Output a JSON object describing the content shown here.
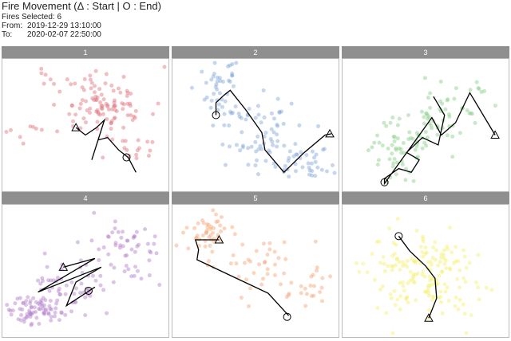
{
  "header": {
    "title": "Fire Movement (Δ : Start | Ο : End)",
    "fires_selected": "Fires Selected: 6",
    "from_label": "From:",
    "from_value": "2019-12-29 13:10:00",
    "to_label": "To:",
    "to_value": "2020-02-07 22:50:00"
  },
  "chart_data": [
    {
      "type": "scatter",
      "title": "1",
      "color": "#e0707a",
      "cloud": [
        {
          "x": 0.6,
          "y": 0.35,
          "sx": 0.14,
          "sy": 0.13,
          "n": 105
        },
        {
          "x": 0.25,
          "y": 0.12,
          "sx": 0.05,
          "sy": 0.05,
          "n": 6
        },
        {
          "x": 0.15,
          "y": 0.55,
          "sx": 0.08,
          "sy": 0.06,
          "n": 8
        },
        {
          "x": 0.85,
          "y": 0.7,
          "sx": 0.07,
          "sy": 0.06,
          "n": 12
        }
      ],
      "path": [
        [
          0.44,
          0.52
        ],
        [
          0.5,
          0.58
        ],
        [
          0.57,
          0.52
        ],
        [
          0.62,
          0.46
        ],
        [
          0.54,
          0.78
        ],
        [
          0.58,
          0.62
        ],
        [
          0.64,
          0.6
        ],
        [
          0.71,
          0.7
        ],
        [
          0.77,
          0.76
        ],
        [
          0.82,
          0.88
        ]
      ],
      "start": [
        0.44,
        0.52
      ],
      "end": [
        0.76,
        0.76
      ]
    },
    {
      "type": "scatter",
      "title": "2",
      "color": "#7fa3d6",
      "cloud": [
        {
          "x": 0.28,
          "y": 0.22,
          "sx": 0.07,
          "sy": 0.12,
          "n": 45
        },
        {
          "x": 0.55,
          "y": 0.55,
          "sx": 0.12,
          "sy": 0.14,
          "n": 60
        },
        {
          "x": 0.78,
          "y": 0.8,
          "sx": 0.1,
          "sy": 0.08,
          "n": 40
        }
      ],
      "path": [
        [
          0.25,
          0.42
        ],
        [
          0.25,
          0.32
        ],
        [
          0.3,
          0.26
        ],
        [
          0.34,
          0.22
        ],
        [
          0.44,
          0.38
        ],
        [
          0.54,
          0.56
        ],
        [
          0.56,
          0.7
        ],
        [
          0.68,
          0.88
        ],
        [
          0.8,
          0.73
        ],
        [
          0.94,
          0.58
        ],
        [
          0.98,
          0.57
        ]
      ],
      "start": [
        0.97,
        0.57
      ],
      "end": [
        0.25,
        0.42
      ]
    },
    {
      "type": "scatter",
      "title": "3",
      "color": "#86cf86",
      "cloud": [
        {
          "x": 0.32,
          "y": 0.7,
          "sx": 0.1,
          "sy": 0.12,
          "n": 55
        },
        {
          "x": 0.56,
          "y": 0.5,
          "sx": 0.1,
          "sy": 0.1,
          "n": 35
        },
        {
          "x": 0.72,
          "y": 0.3,
          "sx": 0.1,
          "sy": 0.1,
          "n": 25
        }
      ],
      "path": [
        [
          0.55,
          0.27
        ],
        [
          0.62,
          0.42
        ],
        [
          0.58,
          0.66
        ],
        [
          0.48,
          0.6
        ],
        [
          0.38,
          0.72
        ],
        [
          0.46,
          0.78
        ],
        [
          0.41,
          0.88
        ],
        [
          0.33,
          0.85
        ],
        [
          0.24,
          0.93
        ],
        [
          0.24,
          0.97
        ],
        [
          0.54,
          0.44
        ],
        [
          0.6,
          0.58
        ],
        [
          0.69,
          0.48
        ],
        [
          0.78,
          0.24
        ],
        [
          0.94,
          0.58
        ]
      ],
      "start": [
        0.94,
        0.58
      ],
      "end": [
        0.24,
        0.96
      ]
    },
    {
      "type": "scatter",
      "title": "4",
      "color": "#b17cc9",
      "cloud": [
        {
          "x": 0.18,
          "y": 0.82,
          "sx": 0.08,
          "sy": 0.06,
          "n": 70
        },
        {
          "x": 0.4,
          "y": 0.62,
          "sx": 0.14,
          "sy": 0.12,
          "n": 55
        },
        {
          "x": 0.75,
          "y": 0.35,
          "sx": 0.12,
          "sy": 0.14,
          "n": 55
        }
      ],
      "path": [
        [
          0.36,
          0.47
        ],
        [
          0.56,
          0.4
        ],
        [
          0.2,
          0.67
        ],
        [
          0.6,
          0.47
        ],
        [
          0.44,
          0.59
        ],
        [
          0.38,
          0.78
        ],
        [
          0.56,
          0.63
        ]
      ],
      "start": [
        0.36,
        0.47
      ],
      "end": [
        0.52,
        0.66
      ]
    },
    {
      "type": "scatter",
      "title": "5",
      "color": "#f5a574",
      "cloud": [
        {
          "x": 0.18,
          "y": 0.2,
          "sx": 0.08,
          "sy": 0.08,
          "n": 45
        },
        {
          "x": 0.55,
          "y": 0.45,
          "sx": 0.14,
          "sy": 0.18,
          "n": 40
        },
        {
          "x": 0.85,
          "y": 0.6,
          "sx": 0.07,
          "sy": 0.08,
          "n": 20
        }
      ],
      "path": [
        [
          0.27,
          0.25
        ],
        [
          0.12,
          0.25
        ],
        [
          0.14,
          0.33
        ],
        [
          0.13,
          0.41
        ],
        [
          0.38,
          0.56
        ],
        [
          0.58,
          0.68
        ],
        [
          0.71,
          0.86
        ]
      ],
      "start": [
        0.27,
        0.25
      ],
      "end": [
        0.7,
        0.87
      ]
    },
    {
      "type": "scatter",
      "title": "6",
      "color": "#f3f06a",
      "cloud": [
        {
          "x": 0.52,
          "y": 0.52,
          "sx": 0.17,
          "sy": 0.18,
          "n": 170
        }
      ],
      "path": [
        [
          0.33,
          0.22
        ],
        [
          0.4,
          0.34
        ],
        [
          0.5,
          0.46
        ],
        [
          0.56,
          0.56
        ],
        [
          0.57,
          0.72
        ],
        [
          0.52,
          0.88
        ]
      ],
      "start": [
        0.52,
        0.88
      ],
      "end": [
        0.33,
        0.22
      ]
    }
  ]
}
